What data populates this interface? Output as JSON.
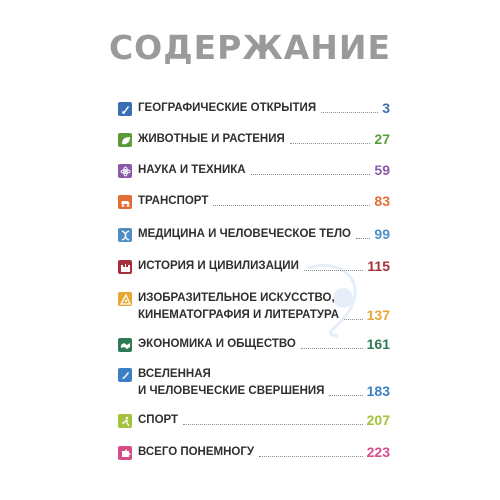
{
  "title": "СОДЕРЖАНИЕ",
  "entries": [
    {
      "icon": "compass-icon",
      "color": "#3a6fb5",
      "lines": [
        "ГЕОГРАФИЧЕСКИЕ ОТКРЫТИЯ"
      ],
      "page": "3"
    },
    {
      "icon": "leaf-icon",
      "color": "#5d9b3a",
      "lines": [
        "ЖИВОТНЫЕ И РАСТЕНИЯ"
      ],
      "page": "27"
    },
    {
      "icon": "atom-icon",
      "color": "#8a5aa8",
      "lines": [
        "НАУКА И ТЕХНИКА"
      ],
      "page": "59"
    },
    {
      "icon": "car-icon",
      "color": "#e36e35",
      "lines": [
        "ТРАНСПОРТ"
      ],
      "page": "83"
    },
    {
      "icon": "dna-icon",
      "color": "#4f8fc6",
      "lines": [
        "МЕДИЦИНА И ЧЕЛОВЕЧЕСКОЕ ТЕЛО"
      ],
      "page": "99"
    },
    {
      "icon": "castle-icon",
      "color": "#a6303a",
      "lines": [
        "ИСТОРИЯ И ЦИВИЛИЗАЦИИ"
      ],
      "page": "115"
    },
    {
      "icon": "palette-icon",
      "color": "#e8a634",
      "lines": [
        "ИЗОБРАЗИТЕЛЬНОЕ ИСКУССТВО,",
        "КИНЕМАТОГРАФИЯ И ЛИТЕРАТУРА"
      ],
      "page": "137"
    },
    {
      "icon": "handshake-icon",
      "color": "#2e7a55",
      "lines": [
        "ЭКОНОМИКА И ОБЩЕСТВО"
      ],
      "page": "161"
    },
    {
      "icon": "rocket-icon",
      "color": "#3d7fc4",
      "lines": [
        "ВСЕЛЕННАЯ",
        "И ЧЕЛОВЕЧЕСКИЕ СВЕРШЕНИЯ"
      ],
      "page": "183"
    },
    {
      "icon": "runner-icon",
      "color": "#a4c23a",
      "lines": [
        "СПОРТ"
      ],
      "page": "207"
    },
    {
      "icon": "puzzle-icon",
      "color": "#d84c8a",
      "lines": [
        "ВСЕГО ПОНЕМНОГУ"
      ],
      "page": "223"
    }
  ]
}
